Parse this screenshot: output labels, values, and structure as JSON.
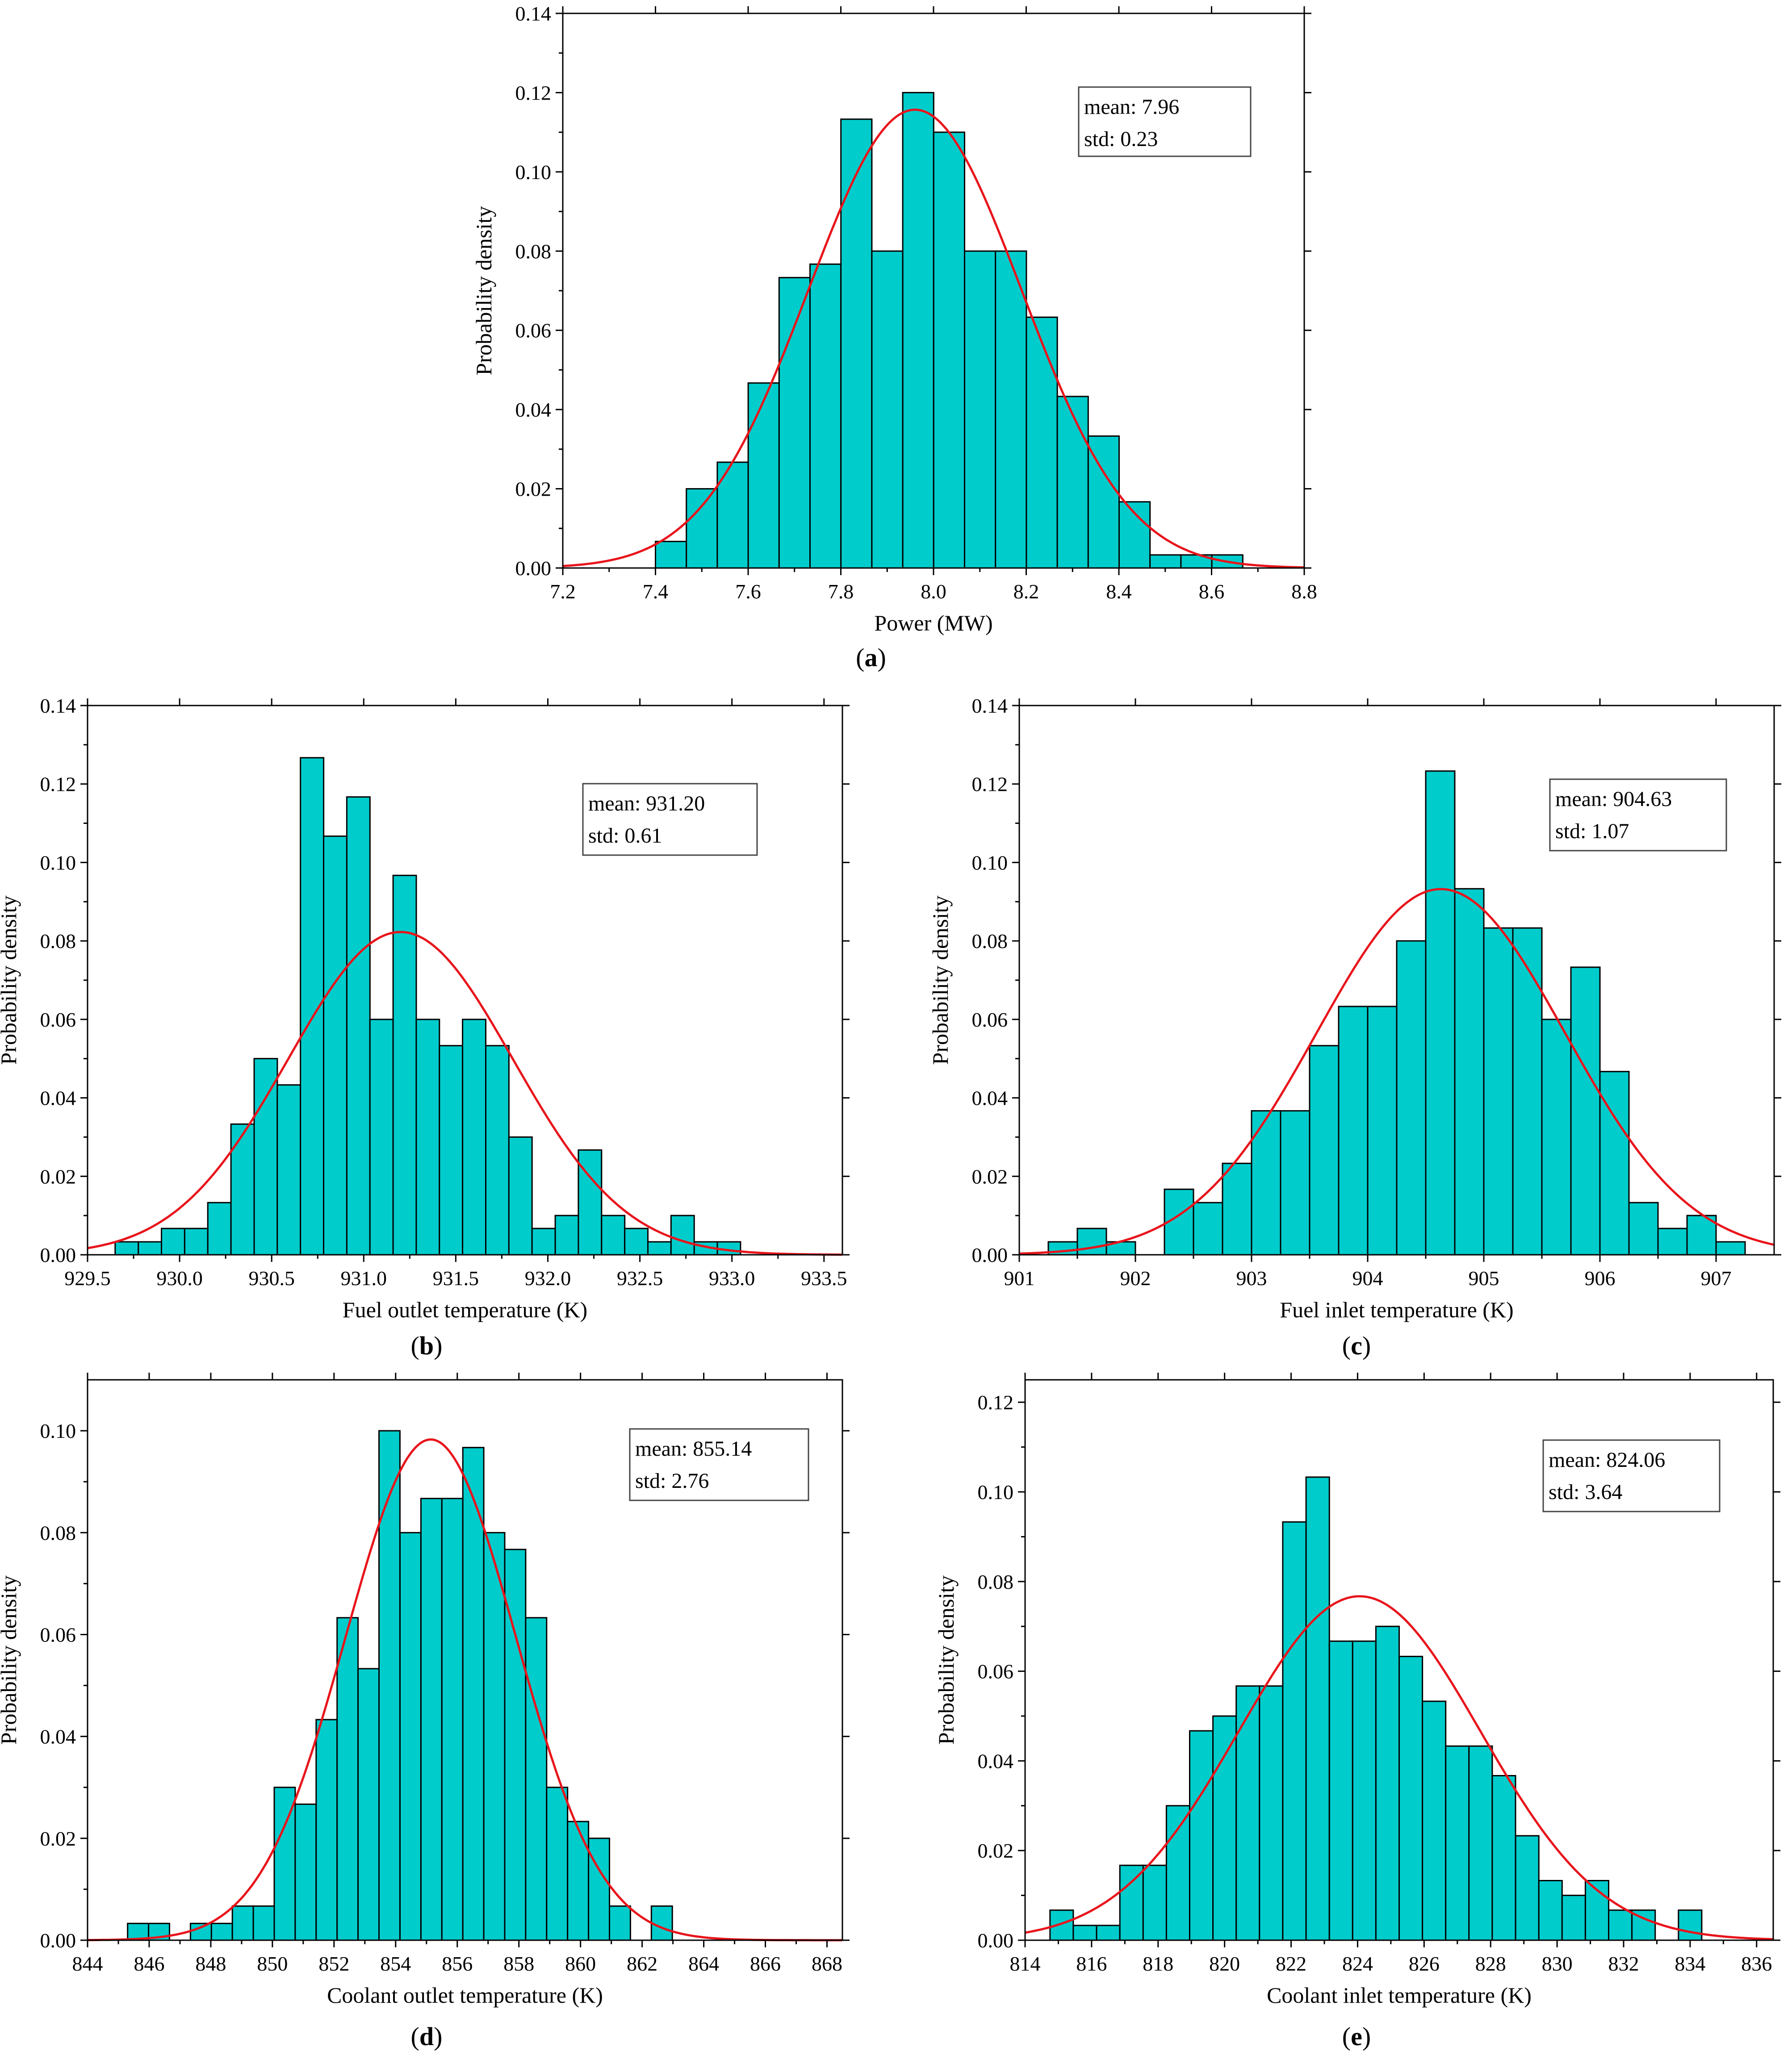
{
  "chart_data": [
    {
      "id": "a",
      "type": "bar",
      "panel_label_pre": "(",
      "panel_label_letter": "a",
      "panel_label_post": ")",
      "xlabel": "Power (MW)",
      "ylabel": "Probability density",
      "xlim": [
        7.2,
        8.8
      ],
      "ylim": [
        0,
        0.14
      ],
      "xticks": [
        "7.2",
        "7.4",
        "7.6",
        "7.8",
        "8.0",
        "8.2",
        "8.4",
        "8.6",
        "8.8"
      ],
      "yticks": [
        "0.00",
        "0.02",
        "0.04",
        "0.06",
        "0.08",
        "0.10",
        "0.12",
        "0.14"
      ],
      "bin_start": 7.4,
      "bin_width": 0.0667,
      "values": [
        0.0067,
        0.02,
        0.0267,
        0.0467,
        0.0733,
        0.0767,
        0.1133,
        0.08,
        0.12,
        0.11,
        0.08,
        0.08,
        0.0633,
        0.0433,
        0.0333,
        0.0167,
        0.0033,
        0.0033,
        0.0033
      ],
      "mean": 7.96,
      "std": 0.23,
      "legend": {
        "mean": "mean: 7.96",
        "std": "std: 0.23"
      },
      "grid": false,
      "colors": {
        "bar": "#00CCCC",
        "curve": "#E8141B"
      }
    },
    {
      "id": "b",
      "type": "bar",
      "panel_label_pre": "(",
      "panel_label_letter": "b",
      "panel_label_post": ")",
      "xlabel": "Fuel outlet temperature (K)",
      "ylabel": "Probability density",
      "xlim": [
        929.5,
        933.6
      ],
      "ylim": [
        0,
        0.14
      ],
      "xticks": [
        "929.5",
        "930.0",
        "930.5",
        "931.0",
        "931.5",
        "932.0",
        "932.5",
        "933.0",
        "933.5"
      ],
      "yticks": [
        "0.00",
        "0.02",
        "0.04",
        "0.06",
        "0.08",
        "0.10",
        "0.12",
        "0.14"
      ],
      "bin_start": 929.65,
      "bin_width": 0.1258,
      "values": [
        0.0033,
        0.0033,
        0.0067,
        0.0067,
        0.0133,
        0.0333,
        0.05,
        0.0433,
        0.1267,
        0.1067,
        0.1167,
        0.06,
        0.0967,
        0.06,
        0.0533,
        0.06,
        0.0533,
        0.03,
        0.0067,
        0.01,
        0.0267,
        0.01,
        0.0067,
        0.0033,
        0.01,
        0.0033,
        0.0033
      ],
      "mean": 931.2,
      "std": 0.61,
      "legend": {
        "mean": "mean: 931.20",
        "std": "std: 0.61"
      },
      "grid": false,
      "colors": {
        "bar": "#00CCCC",
        "curve": "#E8141B"
      }
    },
    {
      "id": "c",
      "type": "bar",
      "panel_label_pre": "(",
      "panel_label_letter": "c",
      "panel_label_post": ")",
      "xlabel": "Fuel inlet temperature (K)",
      "ylabel": "Probability density",
      "xlim": [
        901,
        907.5
      ],
      "ylim": [
        0,
        0.14
      ],
      "xticks": [
        "901",
        "902",
        "903",
        "904",
        "905",
        "906",
        "907"
      ],
      "yticks": [
        "0.00",
        "0.02",
        "0.04",
        "0.06",
        "0.08",
        "0.10",
        "0.12",
        "0.14"
      ],
      "bin_start": 901.25,
      "bin_width": 0.25,
      "values": [
        0.0033,
        0.0067,
        0.0033,
        0,
        0.0167,
        0.0133,
        0.0233,
        0.0367,
        0.0367,
        0.0533,
        0.0633,
        0.0633,
        0.08,
        0.1233,
        0.0933,
        0.0833,
        0.0833,
        0.06,
        0.0733,
        0.0467,
        0.0133,
        0.0067,
        0.01,
        0.0033
      ],
      "mean": 904.63,
      "std": 1.07,
      "legend": {
        "mean": "mean: 904.63",
        "std": "std: 1.07"
      },
      "grid": false,
      "colors": {
        "bar": "#00CCCC",
        "curve": "#E8141B"
      }
    },
    {
      "id": "d",
      "type": "bar",
      "panel_label_pre": "(",
      "panel_label_letter": "d",
      "panel_label_post": ")",
      "xlabel": "Coolant outlet temperature (K)",
      "ylabel": "Probability density",
      "xlim": [
        844,
        868.5
      ],
      "ylim": [
        0,
        0.11
      ],
      "xticks": [
        "844",
        "846",
        "848",
        "850",
        "852",
        "854",
        "856",
        "858",
        "860",
        "862",
        "864",
        "866",
        "868"
      ],
      "yticks": [
        "0.00",
        "0.02",
        "0.04",
        "0.06",
        "0.08",
        "0.10"
      ],
      "bin_start": 845.3,
      "bin_width": 0.68,
      "values": [
        0.0033,
        0.0033,
        0,
        0.0033,
        0.0033,
        0.0067,
        0.0067,
        0.03,
        0.0267,
        0.0433,
        0.0633,
        0.0533,
        0.1,
        0.08,
        0.0867,
        0.0867,
        0.0967,
        0.08,
        0.0767,
        0.0633,
        0.03,
        0.0233,
        0.02,
        0.0067,
        0,
        0.0067
      ],
      "mean": 855.14,
      "std": 2.76,
      "legend": {
        "mean": "mean: 855.14",
        "std": "std: 2.76"
      },
      "grid": false,
      "colors": {
        "bar": "#00CCCC",
        "curve": "#E8141B"
      }
    },
    {
      "id": "e",
      "type": "bar",
      "panel_label_pre": "(",
      "panel_label_letter": "e",
      "panel_label_post": ")",
      "xlabel": "Coolant inlet temperature (K)",
      "ylabel": "Probability density",
      "xlim": [
        814,
        836.5
      ],
      "ylim": [
        0,
        0.125
      ],
      "xticks": [
        "814",
        "816",
        "818",
        "820",
        "822",
        "824",
        "826",
        "828",
        "830",
        "832",
        "834",
        "836"
      ],
      "yticks": [
        "0.00",
        "0.02",
        "0.04",
        "0.06",
        "0.08",
        "0.10",
        "0.12"
      ],
      "bin_start": 814.75,
      "bin_width": 0.7,
      "values": [
        0.0067,
        0.0033,
        0.0033,
        0.0167,
        0.0167,
        0.03,
        0.0467,
        0.05,
        0.0567,
        0.0567,
        0.0933,
        0.1033,
        0.0667,
        0.0667,
        0.07,
        0.0633,
        0.0533,
        0.0433,
        0.0433,
        0.0367,
        0.0233,
        0.0133,
        0.01,
        0.0133,
        0.0067,
        0.0067,
        0,
        0.0067
      ],
      "mean": 824.06,
      "std": 3.64,
      "legend": {
        "mean": "mean: 824.06",
        "std": "std: 3.64"
      },
      "grid": false,
      "colors": {
        "bar": "#00CCCC",
        "curve": "#E8141B"
      }
    }
  ]
}
